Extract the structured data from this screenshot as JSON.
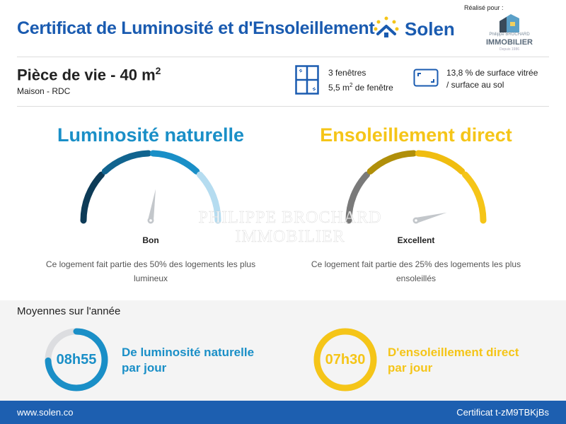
{
  "header": {
    "title": "Certificat de Luminosité et d'Ensoleillement",
    "brand": "Solen",
    "realise_pour": "Réalisé pour :",
    "partner": {
      "line1": "Philippe BROCHARD",
      "line2": "IMMOBILIER",
      "line3": "Depuis 1986"
    }
  },
  "room": {
    "name": "Pièce de vie - 40 m",
    "exponent": "2",
    "location": "Maison - RDC"
  },
  "windows": {
    "count": "3 fenêtres",
    "area_prefix": "5,5 m",
    "area_exp": "2",
    "area_suffix": " de fenêtre"
  },
  "ratio": {
    "line1": "13,8 % de surface vitrée",
    "line2": "/ surface au sol"
  },
  "luminosite": {
    "title": "Luminosité naturelle",
    "rating": "Bon",
    "level": 0.55,
    "description": "Ce logement fait partie des 50% des logements les plus lumineux",
    "colors": [
      "#0d3b57",
      "#11648f",
      "#1a8fc7",
      "#b5dcf0"
    ]
  },
  "ensoleillement": {
    "title": "Ensoleillement direct",
    "rating": "Excellent",
    "level": 0.92,
    "description": "Ce logement fait partie des 25% des logements les plus ensoleillés",
    "colors": [
      "#7a7a7a",
      "#b08f0a",
      "#f0bd10",
      "#f5c518"
    ]
  },
  "watermark": "PHILIPPE BROCHARD IMMOBILIER",
  "averages": {
    "title": "Moyennes sur l'année",
    "luminosite": {
      "value": "08h55",
      "fraction": 0.743,
      "line1": "De luminosité naturelle",
      "line2": "par jour",
      "color": "#1a8fc7"
    },
    "ensoleillement": {
      "value": "07h30",
      "fraction": 1.0,
      "line1": "D'ensoleillement direct",
      "line2": "par jour",
      "color": "#f5c518"
    }
  },
  "footer": {
    "website": "www.solen.co",
    "certificate": "Certificat t-zM9TBKjBs"
  }
}
